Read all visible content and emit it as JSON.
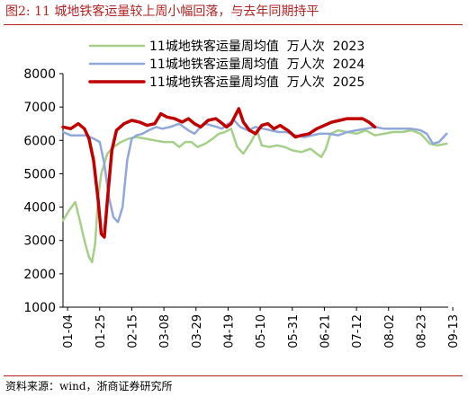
{
  "figure": {
    "title": "图2:  11 城地铁客运量较上周小幅回落，与去年同期持平",
    "source": "资料来源：wind，浙商证券研究所"
  },
  "chart_data": {
    "type": "line",
    "ylim": [
      1000,
      8000
    ],
    "yticks": [
      1000,
      2000,
      3000,
      4000,
      5000,
      6000,
      7000,
      8000
    ],
    "xlim": [
      0,
      252
    ],
    "xticks": [
      {
        "label": "01-04",
        "day": 3
      },
      {
        "label": "01-25",
        "day": 24
      },
      {
        "label": "02-15",
        "day": 45
      },
      {
        "label": "03-08",
        "day": 66
      },
      {
        "label": "03-29",
        "day": 87
      },
      {
        "label": "04-19",
        "day": 108
      },
      {
        "label": "05-10",
        "day": 129
      },
      {
        "label": "05-31",
        "day": 150
      },
      {
        "label": "06-21",
        "day": 171
      },
      {
        "label": "07-12",
        "day": 192
      },
      {
        "label": "08-02",
        "day": 213
      },
      {
        "label": "08-23",
        "day": 234
      },
      {
        "label": "09-13",
        "day": 255
      }
    ],
    "grid": false,
    "legend_position": "top",
    "series": [
      {
        "name": "11城地铁客运量周均值  万人次  2023",
        "color": "#a6d08a",
        "width": 2.5,
        "points": [
          [
            0,
            3600
          ],
          [
            4,
            3900
          ],
          [
            8,
            4150
          ],
          [
            11,
            3600
          ],
          [
            14,
            3000
          ],
          [
            17,
            2500
          ],
          [
            19,
            2350
          ],
          [
            21,
            2900
          ],
          [
            23,
            4300
          ],
          [
            25,
            5000
          ],
          [
            29,
            5600
          ],
          [
            33,
            5800
          ],
          [
            38,
            5950
          ],
          [
            43,
            6050
          ],
          [
            48,
            6100
          ],
          [
            54,
            6050
          ],
          [
            60,
            6000
          ],
          [
            66,
            5950
          ],
          [
            72,
            5950
          ],
          [
            76,
            5800
          ],
          [
            80,
            5950
          ],
          [
            84,
            5950
          ],
          [
            88,
            5800
          ],
          [
            93,
            5900
          ],
          [
            98,
            6050
          ],
          [
            102,
            6200
          ],
          [
            106,
            6250
          ],
          [
            110,
            6350
          ],
          [
            114,
            5800
          ],
          [
            118,
            5600
          ],
          [
            123,
            5950
          ],
          [
            127,
            6300
          ],
          [
            130,
            5850
          ],
          [
            135,
            5800
          ],
          [
            140,
            5850
          ],
          [
            145,
            5800
          ],
          [
            150,
            5700
          ],
          [
            156,
            5650
          ],
          [
            162,
            5750
          ],
          [
            166,
            5600
          ],
          [
            169,
            5500
          ],
          [
            172,
            5750
          ],
          [
            175,
            6200
          ],
          [
            180,
            6300
          ],
          [
            186,
            6250
          ],
          [
            192,
            6200
          ],
          [
            198,
            6300
          ],
          [
            204,
            6150
          ],
          [
            210,
            6200
          ],
          [
            216,
            6250
          ],
          [
            222,
            6250
          ],
          [
            228,
            6300
          ],
          [
            234,
            6200
          ],
          [
            240,
            5900
          ],
          [
            245,
            5850
          ],
          [
            251,
            5900
          ]
        ]
      },
      {
        "name": "11城地铁客运量周均值  万人次  2024",
        "color": "#8fa8d9",
        "width": 2.5,
        "points": [
          [
            0,
            6250
          ],
          [
            5,
            6150
          ],
          [
            10,
            6150
          ],
          [
            15,
            6150
          ],
          [
            20,
            6050
          ],
          [
            24,
            5950
          ],
          [
            27,
            5300
          ],
          [
            30,
            4300
          ],
          [
            33,
            3700
          ],
          [
            36,
            3550
          ],
          [
            39,
            4000
          ],
          [
            42,
            5400
          ],
          [
            45,
            6050
          ],
          [
            48,
            6150
          ],
          [
            52,
            6200
          ],
          [
            56,
            6300
          ],
          [
            61,
            6400
          ],
          [
            65,
            6350
          ],
          [
            70,
            6400
          ],
          [
            76,
            6500
          ],
          [
            82,
            6300
          ],
          [
            86,
            6200
          ],
          [
            89,
            6350
          ],
          [
            93,
            6500
          ],
          [
            97,
            6450
          ],
          [
            101,
            6400
          ],
          [
            104,
            6350
          ],
          [
            108,
            6500
          ],
          [
            112,
            6600
          ],
          [
            116,
            6400
          ],
          [
            121,
            6300
          ],
          [
            126,
            6400
          ],
          [
            131,
            6350
          ],
          [
            136,
            6300
          ],
          [
            141,
            6250
          ],
          [
            146,
            6250
          ],
          [
            152,
            6150
          ],
          [
            158,
            6100
          ],
          [
            163,
            6150
          ],
          [
            168,
            6200
          ],
          [
            174,
            6200
          ],
          [
            180,
            6150
          ],
          [
            186,
            6250
          ],
          [
            192,
            6300
          ],
          [
            198,
            6350
          ],
          [
            204,
            6400
          ],
          [
            210,
            6350
          ],
          [
            216,
            6350
          ],
          [
            222,
            6350
          ],
          [
            228,
            6350
          ],
          [
            234,
            6300
          ],
          [
            238,
            6200
          ],
          [
            242,
            5900
          ],
          [
            246,
            5950
          ],
          [
            251,
            6200
          ]
        ]
      },
      {
        "name": "11城地铁客运量周均值  万人次  2025",
        "color": "#c00000",
        "width": 3.5,
        "points": [
          [
            0,
            6400
          ],
          [
            5,
            6350
          ],
          [
            10,
            6500
          ],
          [
            14,
            6350
          ],
          [
            17,
            6050
          ],
          [
            20,
            5400
          ],
          [
            23,
            4200
          ],
          [
            25,
            3200
          ],
          [
            27,
            3100
          ],
          [
            29,
            4200
          ],
          [
            32,
            5700
          ],
          [
            35,
            6300
          ],
          [
            40,
            6500
          ],
          [
            45,
            6600
          ],
          [
            50,
            6550
          ],
          [
            55,
            6450
          ],
          [
            60,
            6500
          ],
          [
            64,
            6800
          ],
          [
            68,
            6700
          ],
          [
            73,
            6650
          ],
          [
            78,
            6550
          ],
          [
            82,
            6650
          ],
          [
            86,
            6500
          ],
          [
            90,
            6400
          ],
          [
            95,
            6600
          ],
          [
            100,
            6650
          ],
          [
            103,
            6550
          ],
          [
            107,
            6400
          ],
          [
            110,
            6500
          ],
          [
            115,
            6950
          ],
          [
            118,
            6550
          ],
          [
            122,
            6300
          ],
          [
            126,
            6200
          ],
          [
            130,
            6450
          ],
          [
            134,
            6500
          ],
          [
            138,
            6350
          ],
          [
            142,
            6450
          ],
          [
            147,
            6300
          ],
          [
            152,
            6100
          ],
          [
            156,
            6150
          ],
          [
            161,
            6200
          ],
          [
            166,
            6350
          ],
          [
            171,
            6450
          ],
          [
            176,
            6550
          ],
          [
            181,
            6600
          ],
          [
            186,
            6650
          ],
          [
            191,
            6650
          ],
          [
            196,
            6650
          ],
          [
            200,
            6550
          ],
          [
            204,
            6400
          ]
        ]
      }
    ]
  }
}
